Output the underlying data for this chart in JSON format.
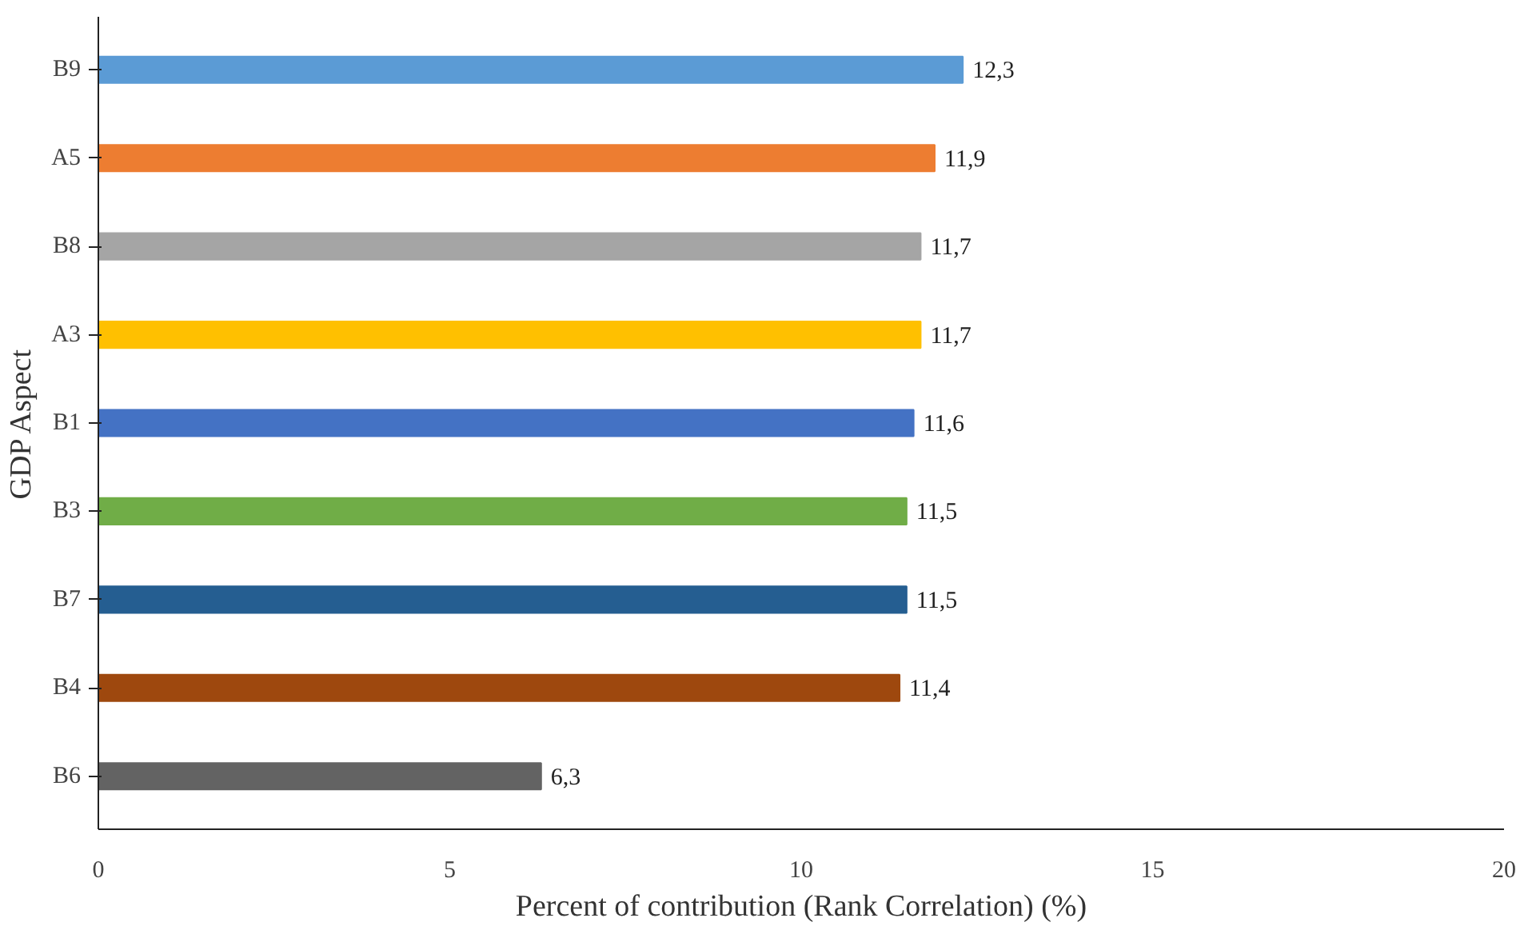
{
  "chart_data": {
    "type": "bar",
    "orientation": "horizontal",
    "xlabel": "Percent of contribution (Rank Correlation) (%)",
    "ylabel": "GDP Aspect",
    "categories": [
      "B9",
      "A5",
      "B8",
      "A3",
      "B1",
      "B3",
      "B7",
      "B4",
      "B6"
    ],
    "values": [
      12.3,
      11.9,
      11.7,
      11.7,
      11.6,
      11.5,
      11.5,
      11.4,
      6.3
    ],
    "value_labels": [
      "12,3",
      "11,9",
      "11,7",
      "11,7",
      "11,6",
      "11,5",
      "11,5",
      "11,4",
      "6,3"
    ],
    "colors": [
      "#5b9bd5",
      "#ed7d31",
      "#a5a5a5",
      "#ffc000",
      "#4472c4",
      "#70ad47",
      "#255e91",
      "#9e480e",
      "#636363"
    ],
    "xlim": [
      0,
      20
    ],
    "xticks": [
      0,
      5,
      10,
      15,
      20
    ],
    "grid": false
  }
}
